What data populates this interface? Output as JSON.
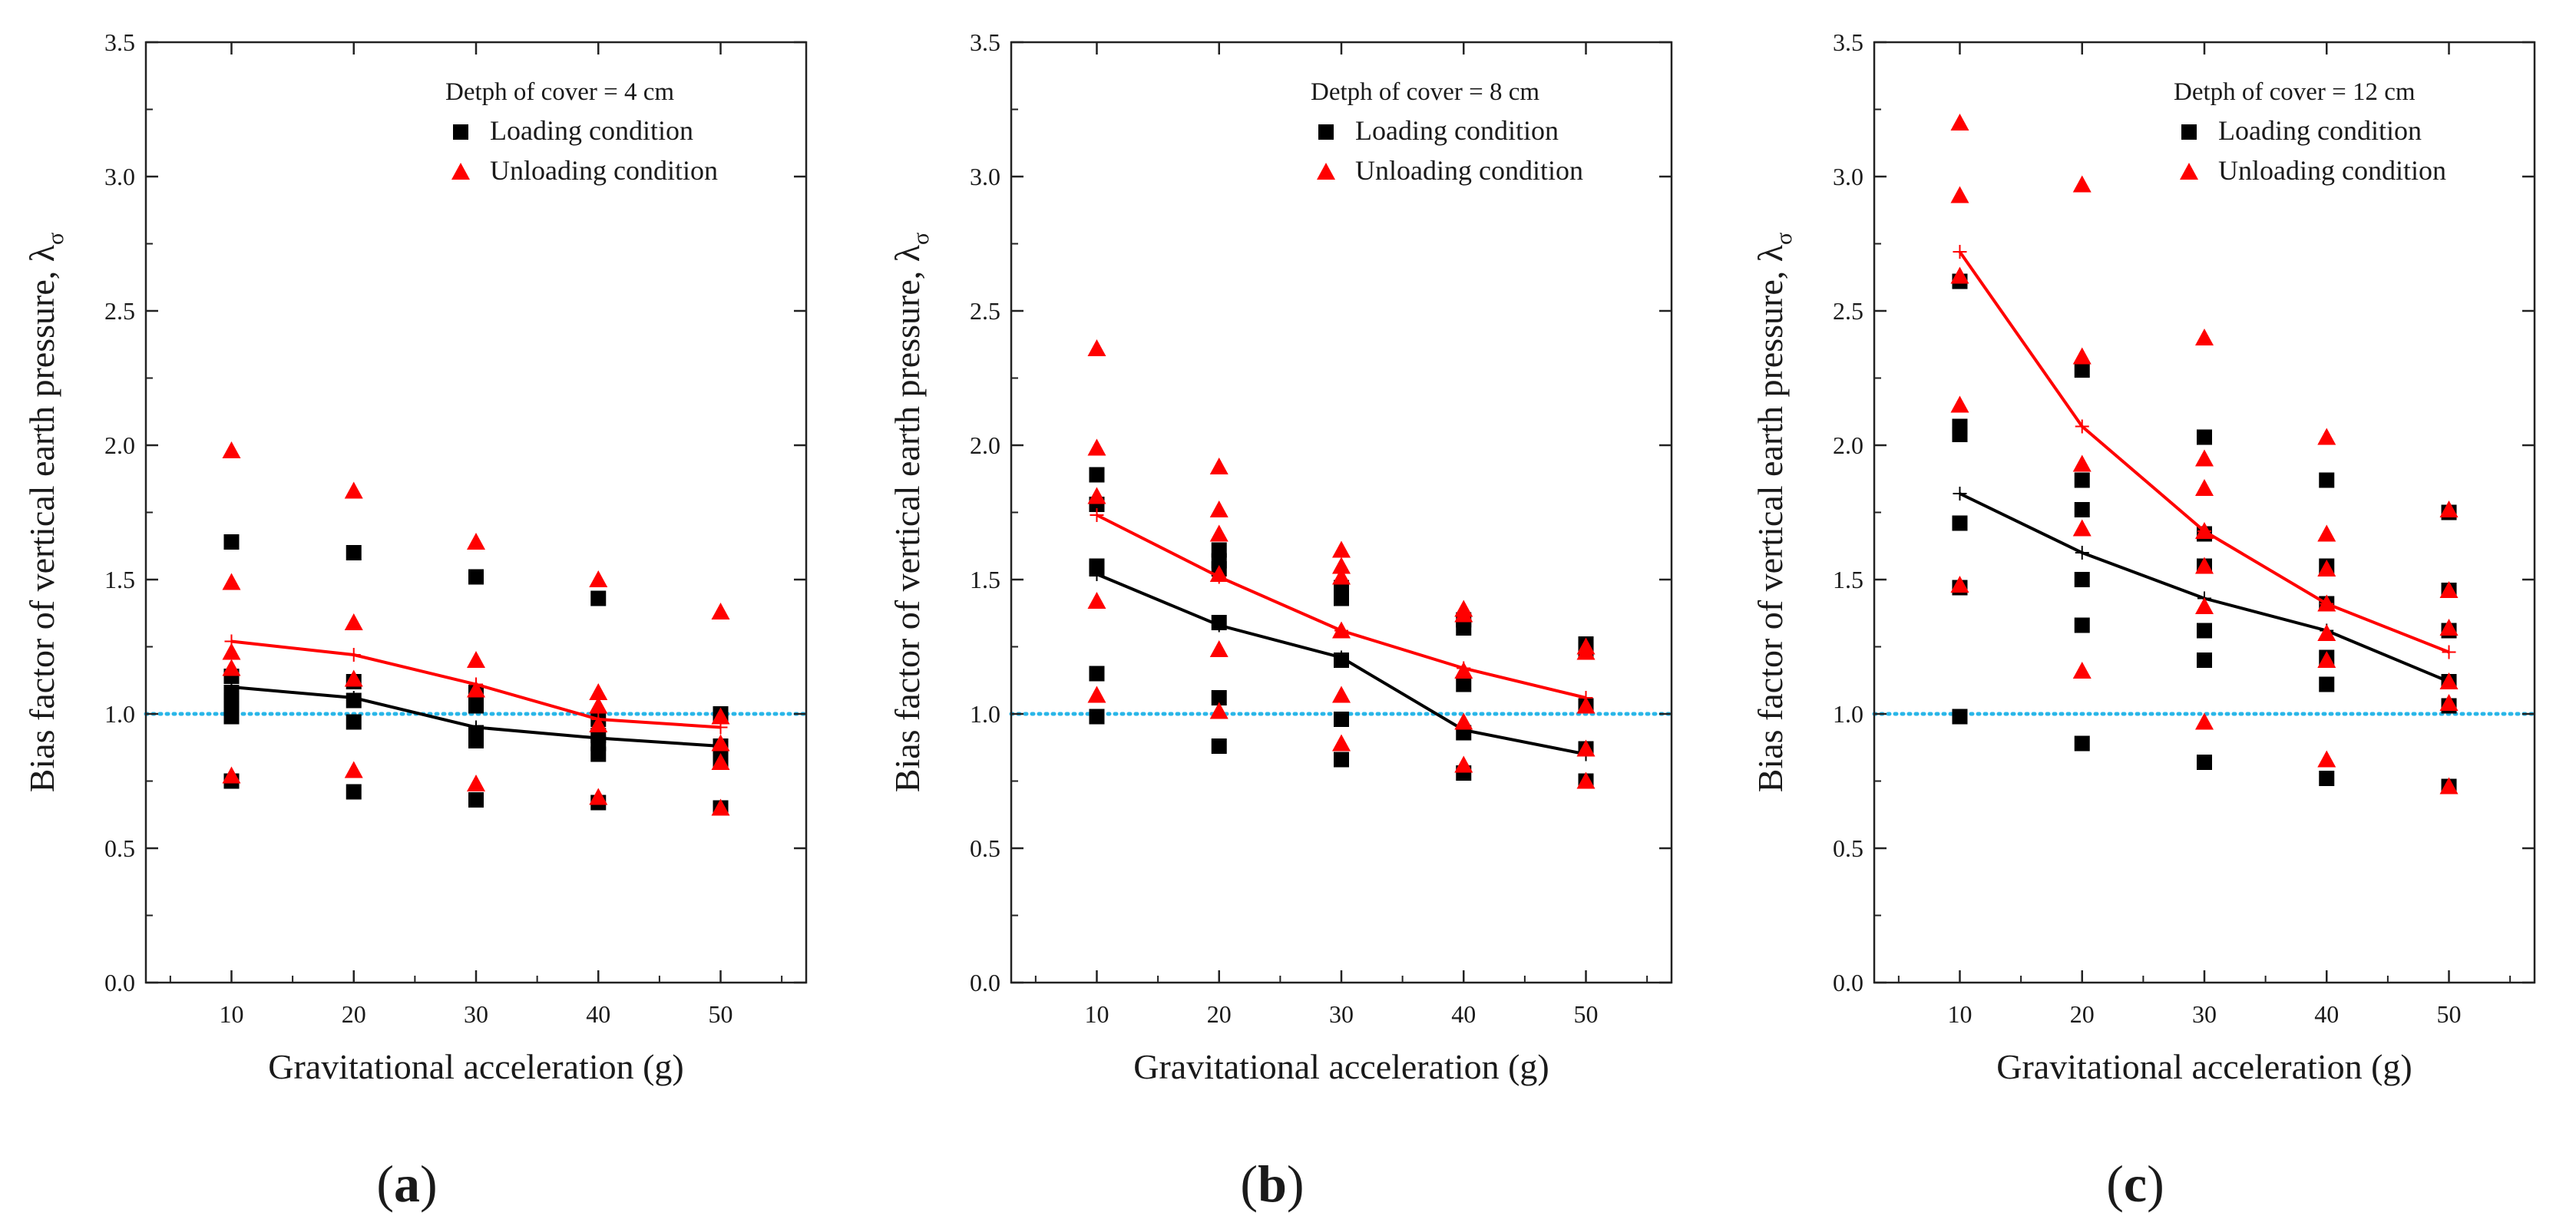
{
  "chart_data": [
    {
      "type": "scatter",
      "panel_label": "a",
      "title": "",
      "legend_title": "Detph of cover = 4 cm",
      "legend_position": "top-right",
      "xlabel": "Gravitational acceleration (g)",
      "ylabel": "Bias factor of vertical earth pressure, λ",
      "ylabel_subscript": "σ",
      "xlim": [
        3,
        57
      ],
      "ylim": [
        0,
        3.5
      ],
      "xticks": [
        10,
        20,
        30,
        40,
        50
      ],
      "yticks": [
        "0.0",
        "0.5",
        "1.0",
        "1.5",
        "2.0",
        "2.5",
        "3.0",
        "3.5"
      ],
      "reference_line": {
        "y": 1.0,
        "style": "dotted",
        "color": "#29b6e8"
      },
      "series": [
        {
          "name": "Loading condition",
          "marker": "square",
          "color": "#000000",
          "points": [
            [
              10,
              1.64
            ],
            [
              10,
              1.14
            ],
            [
              10,
              1.08
            ],
            [
              10,
              1.05
            ],
            [
              10,
              1.02
            ],
            [
              10,
              0.99
            ],
            [
              10,
              0.75
            ],
            [
              20,
              1.6
            ],
            [
              20,
              1.12
            ],
            [
              20,
              1.05
            ],
            [
              20,
              0.97
            ],
            [
              20,
              0.71
            ],
            [
              30,
              1.51
            ],
            [
              30,
              1.08
            ],
            [
              30,
              1.05
            ],
            [
              30,
              1.03
            ],
            [
              30,
              0.93
            ],
            [
              30,
              0.9
            ],
            [
              30,
              0.68
            ],
            [
              40,
              1.43
            ],
            [
              40,
              0.98
            ],
            [
              40,
              0.92
            ],
            [
              40,
              0.89
            ],
            [
              40,
              0.85
            ],
            [
              40,
              0.67
            ],
            [
              50,
              1.0
            ],
            [
              50,
              0.88
            ],
            [
              50,
              0.83
            ],
            [
              50,
              0.65
            ]
          ],
          "mean_line": [
            [
              10,
              1.1
            ],
            [
              20,
              1.06
            ],
            [
              30,
              0.95
            ],
            [
              40,
              0.91
            ],
            [
              50,
              0.88
            ]
          ]
        },
        {
          "name": "Unloading condition",
          "marker": "triangle",
          "color": "#ff0000",
          "points": [
            [
              10,
              1.98
            ],
            [
              10,
              1.49
            ],
            [
              10,
              1.23
            ],
            [
              10,
              1.17
            ],
            [
              10,
              0.77
            ],
            [
              20,
              1.83
            ],
            [
              20,
              1.34
            ],
            [
              20,
              1.13
            ],
            [
              20,
              0.79
            ],
            [
              30,
              1.64
            ],
            [
              30,
              1.2
            ],
            [
              30,
              1.09
            ],
            [
              30,
              0.74
            ],
            [
              40,
              1.5
            ],
            [
              40,
              1.08
            ],
            [
              40,
              1.03
            ],
            [
              40,
              0.96
            ],
            [
              40,
              0.69
            ],
            [
              50,
              1.38
            ],
            [
              50,
              0.99
            ],
            [
              50,
              0.89
            ],
            [
              50,
              0.82
            ],
            [
              50,
              0.65
            ]
          ],
          "mean_line": [
            [
              10,
              1.27
            ],
            [
              20,
              1.22
            ],
            [
              30,
              1.11
            ],
            [
              40,
              0.98
            ],
            [
              50,
              0.95
            ]
          ]
        }
      ]
    },
    {
      "type": "scatter",
      "panel_label": "b",
      "title": "",
      "legend_title": "Detph of cover = 8 cm",
      "legend_position": "top-right",
      "xlabel": "Gravitational acceleration (g)",
      "ylabel": "Bias factor of vertical earth pressure, λ",
      "ylabel_subscript": "σ",
      "xlim": [
        3,
        57
      ],
      "ylim": [
        0,
        3.5
      ],
      "xticks": [
        10,
        20,
        30,
        40,
        50
      ],
      "yticks": [
        "0.0",
        "0.5",
        "1.0",
        "1.5",
        "2.0",
        "2.5",
        "3.0",
        "3.5"
      ],
      "reference_line": {
        "y": 1.0,
        "style": "dotted",
        "color": "#29b6e8"
      },
      "series": [
        {
          "name": "Loading condition",
          "marker": "square",
          "color": "#000000",
          "points": [
            [
              10,
              1.89
            ],
            [
              10,
              1.78
            ],
            [
              10,
              1.55
            ],
            [
              10,
              1.54
            ],
            [
              10,
              1.15
            ],
            [
              10,
              0.99
            ],
            [
              20,
              1.61
            ],
            [
              20,
              1.57
            ],
            [
              20,
              1.54
            ],
            [
              20,
              1.34
            ],
            [
              20,
              1.06
            ],
            [
              20,
              0.88
            ],
            [
              30,
              1.47
            ],
            [
              30,
              1.43
            ],
            [
              30,
              1.2
            ],
            [
              30,
              0.98
            ],
            [
              30,
              0.83
            ],
            [
              40,
              1.35
            ],
            [
              40,
              1.32
            ],
            [
              40,
              1.11
            ],
            [
              40,
              0.93
            ],
            [
              40,
              0.78
            ],
            [
              50,
              1.26
            ],
            [
              50,
              1.24
            ],
            [
              50,
              1.03
            ],
            [
              50,
              0.87
            ],
            [
              50,
              0.75
            ]
          ],
          "mean_line": [
            [
              10,
              1.52
            ],
            [
              20,
              1.33
            ],
            [
              30,
              1.21
            ],
            [
              40,
              0.94
            ],
            [
              50,
              0.85
            ]
          ]
        },
        {
          "name": "Unloading condition",
          "marker": "triangle",
          "color": "#ff0000",
          "points": [
            [
              10,
              2.36
            ],
            [
              10,
              1.99
            ],
            [
              10,
              1.81
            ],
            [
              10,
              1.42
            ],
            [
              10,
              1.07
            ],
            [
              20,
              1.92
            ],
            [
              20,
              1.76
            ],
            [
              20,
              1.67
            ],
            [
              20,
              1.52
            ],
            [
              20,
              1.24
            ],
            [
              20,
              1.01
            ],
            [
              30,
              1.61
            ],
            [
              30,
              1.55
            ],
            [
              30,
              1.51
            ],
            [
              30,
              1.31
            ],
            [
              30,
              1.07
            ],
            [
              30,
              0.89
            ],
            [
              40,
              1.39
            ],
            [
              40,
              1.37
            ],
            [
              40,
              1.16
            ],
            [
              40,
              0.97
            ],
            [
              40,
              0.81
            ],
            [
              50,
              1.25
            ],
            [
              50,
              1.23
            ],
            [
              50,
              1.03
            ],
            [
              50,
              0.87
            ],
            [
              50,
              0.75
            ]
          ],
          "mean_line": [
            [
              10,
              1.74
            ],
            [
              20,
              1.51
            ],
            [
              30,
              1.31
            ],
            [
              40,
              1.17
            ],
            [
              50,
              1.06
            ]
          ]
        }
      ]
    },
    {
      "type": "scatter",
      "panel_label": "c",
      "title": "",
      "legend_title": "Detph of cover = 12 cm",
      "legend_position": "top-right",
      "xlabel": "Gravitational acceleration (g)",
      "ylabel": "Bias factor of vertical earth pressure, λ",
      "ylabel_subscript": "σ",
      "xlim": [
        3,
        57
      ],
      "ylim": [
        0,
        3.5
      ],
      "xticks": [
        10,
        20,
        30,
        40,
        50
      ],
      "yticks": [
        "0.0",
        "0.5",
        "1.0",
        "1.5",
        "2.0",
        "2.5",
        "3.0",
        "3.5"
      ],
      "reference_line": {
        "y": 1.0,
        "style": "dotted",
        "color": "#29b6e8"
      },
      "series": [
        {
          "name": "Loading condition",
          "marker": "square",
          "color": "#000000",
          "points": [
            [
              10,
              2.61
            ],
            [
              10,
              2.07
            ],
            [
              10,
              2.04
            ],
            [
              10,
              1.71
            ],
            [
              10,
              1.47
            ],
            [
              10,
              0.99
            ],
            [
              20,
              2.28
            ],
            [
              20,
              1.87
            ],
            [
              20,
              1.76
            ],
            [
              20,
              1.5
            ],
            [
              20,
              1.33
            ],
            [
              20,
              0.89
            ],
            [
              30,
              2.03
            ],
            [
              30,
              1.67
            ],
            [
              30,
              1.55
            ],
            [
              30,
              1.31
            ],
            [
              30,
              1.2
            ],
            [
              30,
              0.82
            ],
            [
              40,
              1.87
            ],
            [
              40,
              1.55
            ],
            [
              40,
              1.41
            ],
            [
              40,
              1.21
            ],
            [
              40,
              1.11
            ],
            [
              40,
              0.76
            ],
            [
              50,
              1.75
            ],
            [
              50,
              1.46
            ],
            [
              50,
              1.31
            ],
            [
              50,
              1.12
            ],
            [
              50,
              1.03
            ],
            [
              50,
              0.73
            ]
          ],
          "mean_line": [
            [
              10,
              1.82
            ],
            [
              20,
              1.6
            ],
            [
              30,
              1.43
            ],
            [
              40,
              1.31
            ],
            [
              50,
              1.12
            ]
          ]
        },
        {
          "name": "Unloading condition",
          "marker": "triangle",
          "color": "#ff0000",
          "points": [
            [
              10,
              3.2
            ],
            [
              10,
              2.93
            ],
            [
              10,
              2.63
            ],
            [
              10,
              2.15
            ],
            [
              10,
              1.48
            ],
            [
              20,
              2.97
            ],
            [
              20,
              2.33
            ],
            [
              20,
              1.93
            ],
            [
              20,
              1.69
            ],
            [
              20,
              1.16
            ],
            [
              30,
              2.4
            ],
            [
              30,
              1.95
            ],
            [
              30,
              1.84
            ],
            [
              30,
              1.68
            ],
            [
              30,
              1.55
            ],
            [
              30,
              1.4
            ],
            [
              30,
              0.97
            ],
            [
              40,
              2.03
            ],
            [
              40,
              1.67
            ],
            [
              40,
              1.54
            ],
            [
              40,
              1.41
            ],
            [
              40,
              1.3
            ],
            [
              40,
              1.2
            ],
            [
              40,
              0.83
            ],
            [
              50,
              1.76
            ],
            [
              50,
              1.46
            ],
            [
              50,
              1.32
            ],
            [
              50,
              1.12
            ],
            [
              50,
              1.04
            ],
            [
              50,
              0.73
            ]
          ],
          "mean_line": [
            [
              10,
              2.72
            ],
            [
              20,
              2.07
            ],
            [
              30,
              1.68
            ],
            [
              40,
              1.41
            ],
            [
              50,
              1.23
            ]
          ]
        }
      ]
    }
  ]
}
